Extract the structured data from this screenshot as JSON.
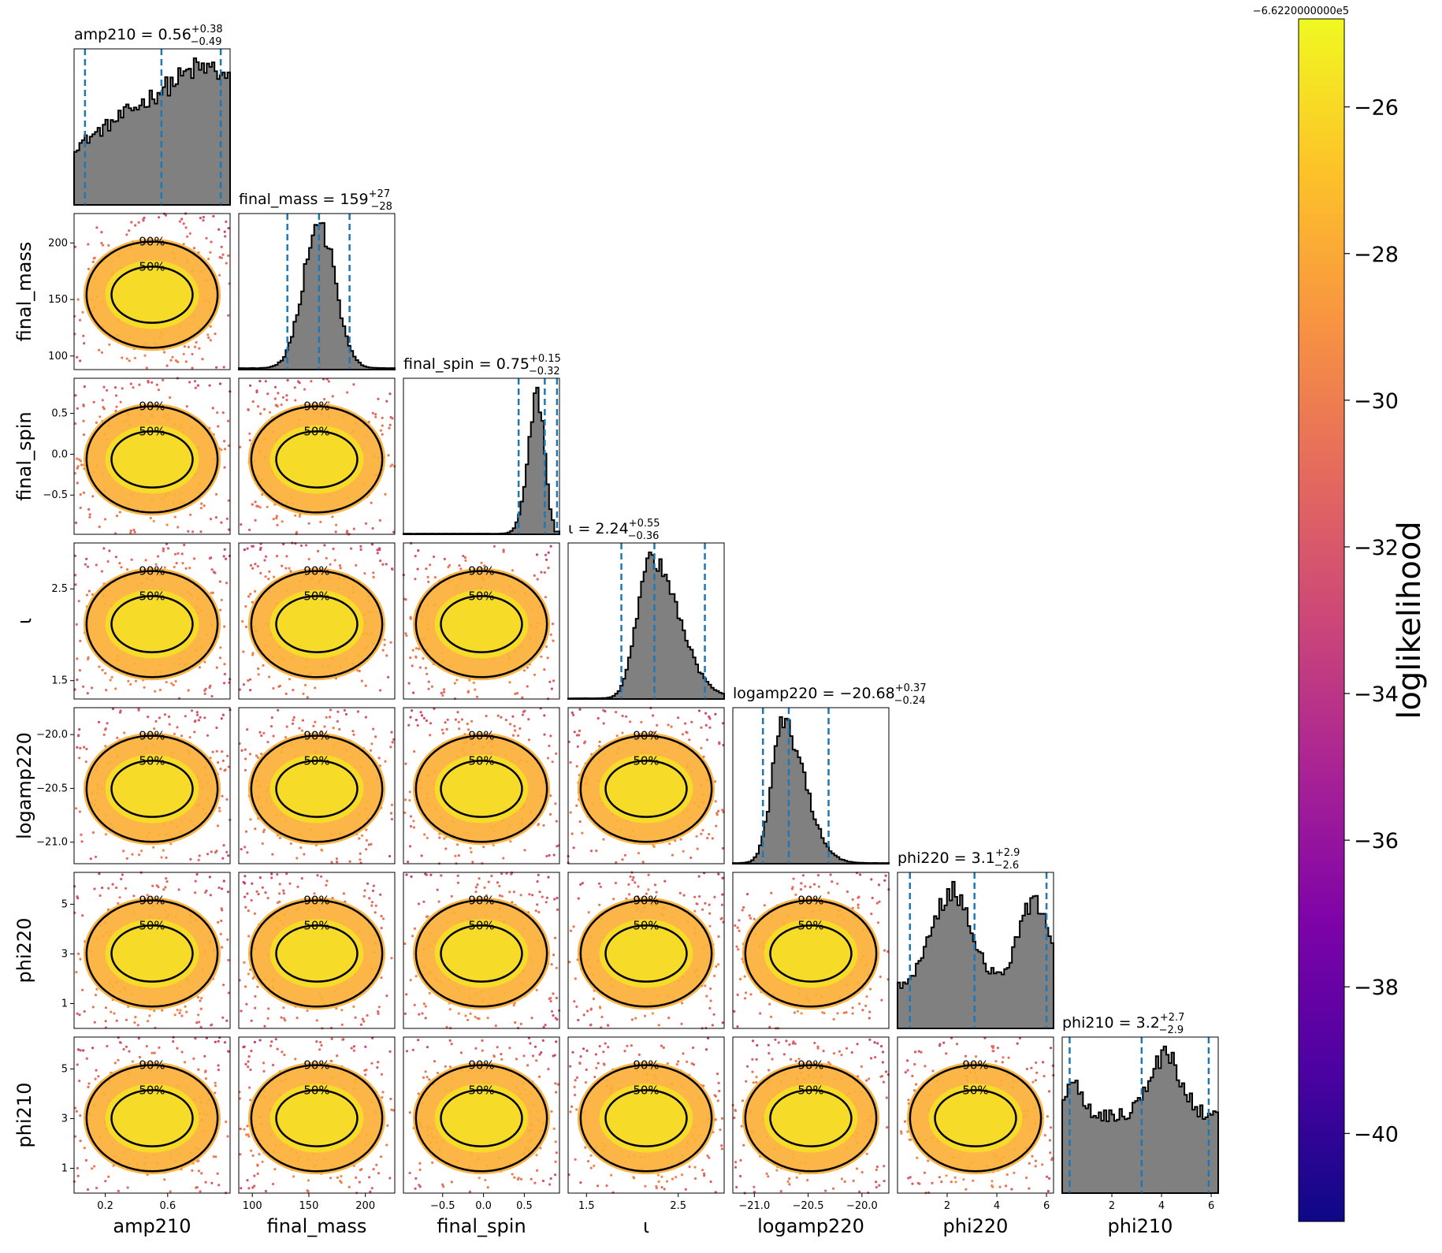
{
  "chart_data": {
    "type": "corner",
    "parameters": [
      {
        "name": "amp210",
        "axis_label": "amp210",
        "range": [
          0.0,
          1.0
        ],
        "ticks": [
          "0.2",
          "0.6"
        ],
        "tick_values": [
          0.2,
          0.6
        ],
        "title_prefix": "amp210 = ",
        "median": "0.56",
        "plus": "+0.38",
        "minus": "−0.49",
        "q05": 0.07,
        "q50": 0.56,
        "q95": 0.94,
        "hist": "rising"
      },
      {
        "name": "final_mass",
        "axis_label": "final_mass",
        "range": [
          88.0,
          226.0
        ],
        "ticks": [
          "100",
          "150",
          "200"
        ],
        "tick_values": [
          100,
          150,
          200
        ],
        "title_prefix": "final_mass = ",
        "median": "159",
        "plus": "+27",
        "minus": "−28",
        "q05": 131,
        "q50": 159,
        "q95": 186,
        "hist": "gauss"
      },
      {
        "name": "final_spin",
        "axis_label": "final_spin",
        "range": [
          -0.98,
          0.93
        ],
        "ticks": [
          "−0.5",
          "0.0",
          "0.5"
        ],
        "tick_values": [
          -0.5,
          0.0,
          0.5
        ],
        "title_prefix": "final_spin = ",
        "median": "0.75",
        "plus": "+0.15",
        "minus": "−0.32",
        "q05": 0.43,
        "q50": 0.75,
        "q95": 0.9,
        "hist": "skewleft"
      },
      {
        "name": "iota",
        "axis_label": "ι",
        "range": [
          1.3,
          3.0
        ],
        "ticks": [
          "1.5",
          "2.5"
        ],
        "tick_values": [
          1.5,
          2.5
        ],
        "title_prefix": "ι = ",
        "median": "2.24",
        "plus": "+0.55",
        "minus": "−0.36",
        "q05": 1.88,
        "q50": 2.24,
        "q95": 2.79,
        "hist": "skewright"
      },
      {
        "name": "logamp220",
        "axis_label": "logamp220",
        "range": [
          -21.2,
          -19.75
        ],
        "ticks": [
          "−21.0",
          "−20.5",
          "−20.0"
        ],
        "tick_values": [
          -21.0,
          -20.5,
          -20.0
        ],
        "title_prefix": "logamp220 = ",
        "median": "−20.68",
        "plus": "+0.37",
        "minus": "−0.24",
        "q05": -20.92,
        "q50": -20.68,
        "q95": -20.31,
        "hist": "skewright2"
      },
      {
        "name": "phi220",
        "axis_label": "phi220",
        "range": [
          0.0,
          6.283
        ],
        "ticks": [
          "2",
          "4",
          "6"
        ],
        "tick_values": [
          2,
          4,
          6
        ],
        "title_prefix": "phi220 = ",
        "median": "3.1",
        "plus": "+2.9",
        "minus": "−2.6",
        "q05": 0.5,
        "q50": 3.1,
        "q95": 6.0,
        "hist": "bimodal"
      },
      {
        "name": "phi210",
        "axis_label": "phi210",
        "range": [
          0.0,
          6.283
        ],
        "ticks": [
          "2",
          "4",
          "6"
        ],
        "tick_values": [
          2,
          4,
          6
        ],
        "title_prefix": "phi210 = ",
        "median": "3.2",
        "plus": "+2.7",
        "minus": "−2.9",
        "q05": 0.3,
        "q50": 3.2,
        "q95": 5.9,
        "hist": "bimodal2"
      }
    ],
    "y_ticks": {
      "final_mass": {
        "labels": [
          "100",
          "150",
          "200"
        ],
        "values": [
          100,
          150,
          200
        ]
      },
      "final_spin": {
        "labels": [
          "−0.5",
          "0.0",
          "0.5"
        ],
        "values": [
          -0.5,
          0.0,
          0.5
        ]
      },
      "iota": {
        "labels": [
          "1.5",
          "2.5"
        ],
        "values": [
          1.5,
          2.5
        ]
      },
      "logamp220": {
        "labels": [
          "−21.0",
          "−20.5",
          "−20.0"
        ],
        "values": [
          -21.0,
          -20.5,
          -20.0
        ]
      },
      "phi220": {
        "labels": [
          "1",
          "3",
          "5"
        ],
        "values": [
          1,
          3,
          5
        ]
      },
      "phi210": {
        "labels": [
          "1",
          "3",
          "5"
        ],
        "values": [
          1,
          3,
          5
        ]
      }
    },
    "contour_levels": [
      "50%",
      "90%"
    ],
    "colorbar": {
      "label": "loglikelihood",
      "offset_text": "−6.6220000000e5",
      "range": [
        -41.2,
        -24.8
      ],
      "ticks": [
        "−26",
        "−28",
        "−30",
        "−32",
        "−34",
        "−36",
        "−38",
        "−40"
      ],
      "tick_values": [
        -26,
        -28,
        -30,
        -32,
        -34,
        -36,
        -38,
        -40
      ],
      "colormap": "plasma"
    },
    "colors": {
      "hist_fill": "#808080",
      "hist_edge": "#000000",
      "quantile_line": "#1f77b4",
      "contour": "#000000"
    }
  }
}
